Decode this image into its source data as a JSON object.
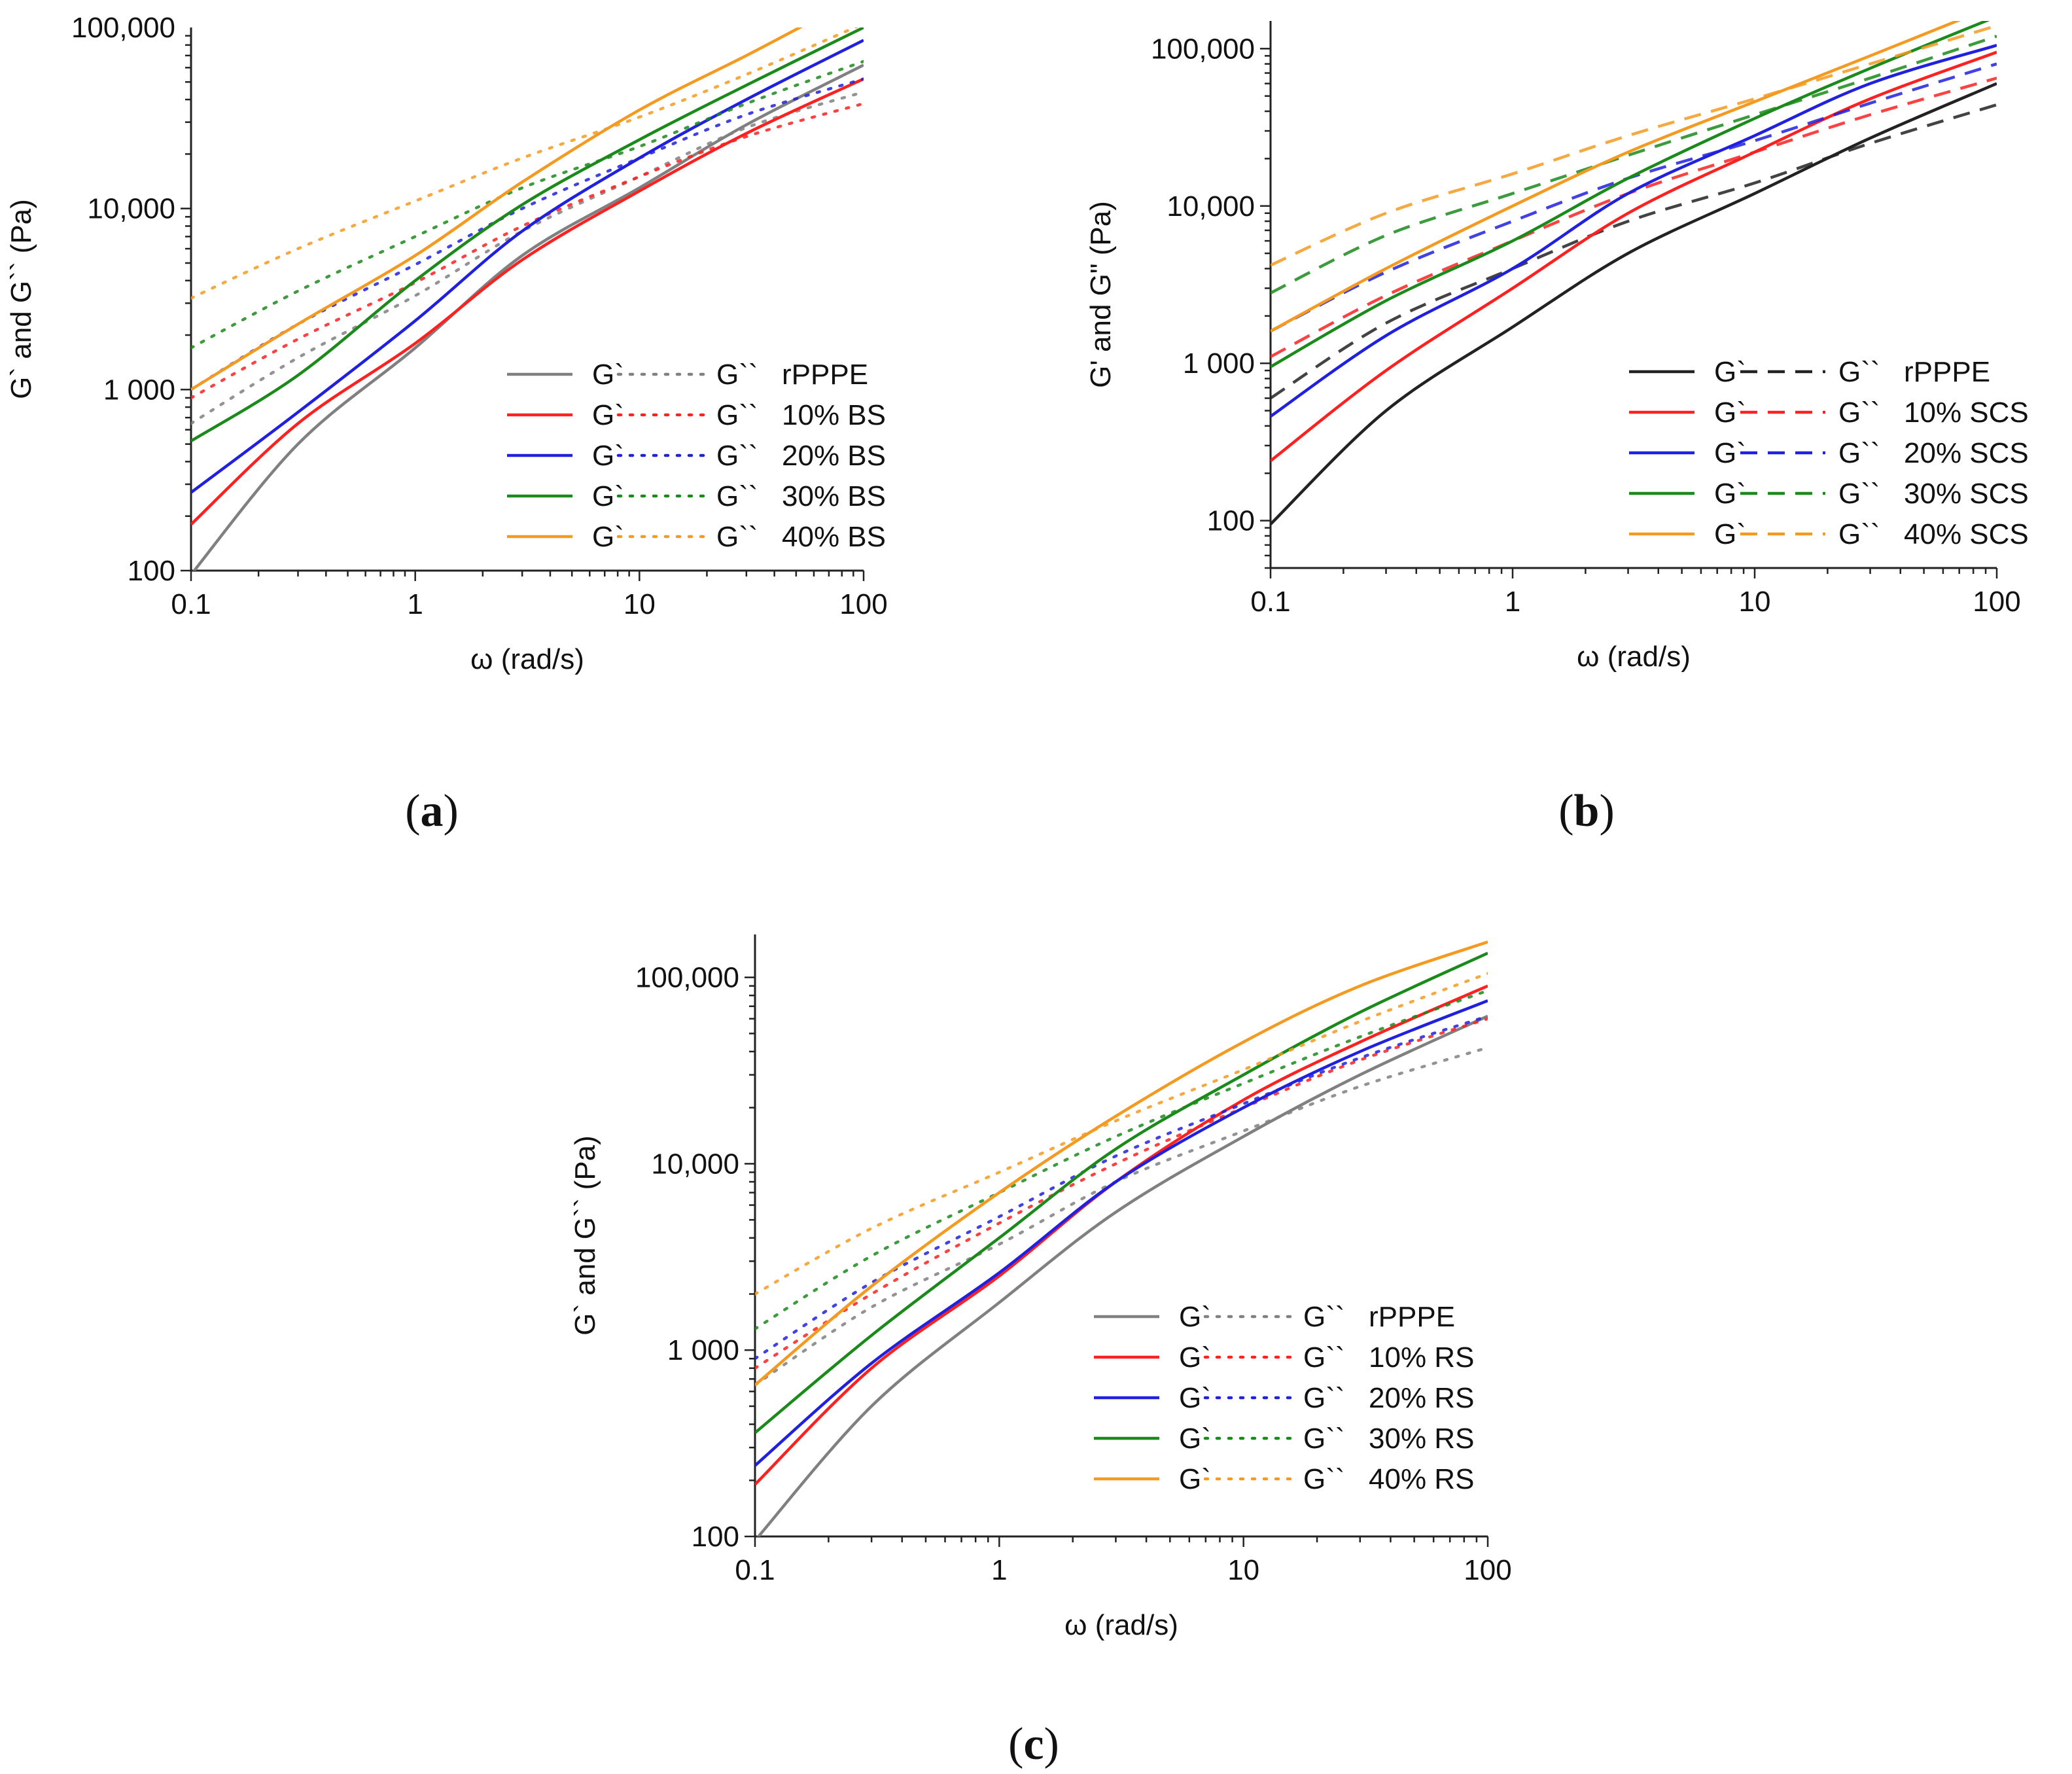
{
  "chart_data": [
    {
      "type": "line",
      "panel": "a",
      "panel_label": "a",
      "xlabel": "ω (rad/s)",
      "ylabel": "G` and G`` (Pa)",
      "xscale": "log",
      "yscale": "log",
      "xlim": [
        0.1,
        100
      ],
      "ylim": [
        100,
        100000
      ],
      "x_ticks": [
        0.1,
        1,
        10,
        100
      ],
      "x_tick_labels": [
        "0.1",
        "1",
        "10",
        "100"
      ],
      "y_ticks": [
        100,
        1000,
        10000,
        100000
      ],
      "y_tick_labels": [
        "100",
        "1 000",
        "10,000",
        "100,000"
      ],
      "loss_style": "dotted",
      "legend_position": "bottom-right",
      "series": [
        {
          "name": "G` rPPPE",
          "legend_storage": "G`",
          "legend_loss": "G``",
          "legend_label": "rPPPE",
          "color": "#808080",
          "storage": {
            "x": [
              0.1,
              0.3,
              1,
              3,
              10,
              30,
              100
            ],
            "y": [
              95,
              500,
              1700,
              5500,
              13000,
              29000,
              62000
            ]
          },
          "loss": {
            "x": [
              0.1,
              0.3,
              1,
              3,
              10,
              30,
              100
            ],
            "y": [
              650,
              1500,
              3300,
              7500,
              15000,
              28000,
              44000
            ]
          }
        },
        {
          "name": "G` 10% BS",
          "legend_storage": "G`",
          "legend_loss": "G``",
          "legend_label": "10% BS",
          "color": "#ff2020",
          "storage": {
            "x": [
              0.1,
              0.3,
              1,
              3,
              10,
              30,
              100
            ],
            "y": [
              180,
              650,
              1800,
              5200,
              12500,
              26000,
              52000
            ]
          },
          "loss": {
            "x": [
              0.1,
              0.3,
              1,
              3,
              10,
              30,
              100
            ],
            "y": [
              900,
              1900,
              3900,
              8000,
              15000,
              25000,
              38000
            ]
          }
        },
        {
          "name": "G` 20% BS",
          "legend_storage": "G`",
          "legend_loss": "G``",
          "legend_label": "20% BS",
          "color": "#2020e0",
          "storage": {
            "x": [
              0.1,
              0.3,
              1,
              3,
              10,
              30,
              100
            ],
            "y": [
              270,
              750,
              2400,
              7500,
              19000,
              40000,
              85000
            ]
          },
          "loss": {
            "x": [
              0.1,
              0.3,
              1,
              3,
              10,
              30,
              100
            ],
            "y": [
              1000,
              2300,
              4900,
              10000,
              19000,
              33000,
              52000
            ]
          }
        },
        {
          "name": "G` 30% BS",
          "legend_storage": "G`",
          "legend_loss": "G``",
          "legend_label": "30% BS",
          "color": "#1a8a1a",
          "storage": {
            "x": [
              0.1,
              0.3,
              1,
              3,
              10,
              30,
              100
            ],
            "y": [
              520,
              1200,
              4000,
              10500,
              24000,
              48000,
              100000
            ]
          },
          "loss": {
            "x": [
              0.1,
              0.3,
              1,
              3,
              10,
              30,
              100
            ],
            "y": [
              1700,
              3500,
              7000,
              13000,
              22000,
              38000,
              65000
            ]
          }
        },
        {
          "name": "G` 40% BS",
          "legend_storage": "G`",
          "legend_loss": "G``",
          "legend_label": "40% BS",
          "color": "#f59a20",
          "storage": {
            "x": [
              0.1,
              0.3,
              1,
              3,
              10,
              30,
              60
            ],
            "y": [
              1000,
              2300,
              5500,
              14000,
              35000,
              70000,
              110000
            ]
          },
          "loss": {
            "x": [
              0.1,
              0.3,
              1,
              3,
              10,
              30,
              100
            ],
            "y": [
              3200,
              6000,
              11000,
              19000,
              32000,
              55000,
              105000
            ]
          }
        }
      ]
    },
    {
      "type": "line",
      "panel": "b",
      "panel_label": "b",
      "xlabel": "ω (rad/s)",
      "ylabel": "G' and G\" (Pa)",
      "xscale": "log",
      "yscale": "log",
      "xlim": [
        0.1,
        100
      ],
      "ylim": [
        50,
        150000
      ],
      "x_ticks": [
        0.1,
        1,
        10,
        100
      ],
      "x_tick_labels": [
        "0.1",
        "1",
        "10",
        "100"
      ],
      "y_ticks": [
        100,
        1000,
        10000,
        100000
      ],
      "y_tick_labels": [
        "100",
        "1 000",
        "10,000",
        "100,000"
      ],
      "loss_style": "dashed",
      "legend_position": "bottom-right",
      "series": [
        {
          "name": "G` rPPPE",
          "legend_storage": "G`",
          "legend_loss": "G``",
          "legend_label": "rPPPE",
          "color": "#222222",
          "storage": {
            "x": [
              0.1,
              0.3,
              1,
              3,
              10,
              30,
              100
            ],
            "y": [
              95,
              500,
              1700,
              5000,
              12000,
              27000,
              60000
            ]
          },
          "loss": {
            "x": [
              0.1,
              0.3,
              1,
              3,
              10,
              30,
              100
            ],
            "y": [
              600,
              1800,
              4000,
              8000,
              14000,
              25000,
              44000
            ]
          }
        },
        {
          "name": "G` 10% SCS",
          "legend_storage": "G`",
          "legend_loss": "G``",
          "legend_label": "10% SCS",
          "color": "#ff2020",
          "storage": {
            "x": [
              0.1,
              0.3,
              1,
              3,
              10,
              30,
              100
            ],
            "y": [
              240,
              900,
              3000,
              9000,
              22000,
              48000,
              95000
            ]
          },
          "loss": {
            "x": [
              0.1,
              0.3,
              1,
              3,
              10,
              30,
              100
            ],
            "y": [
              1100,
              2700,
              6000,
              12000,
              22000,
              38000,
              65000
            ]
          }
        },
        {
          "name": "G` 20% SCS",
          "legend_storage": "G`",
          "legend_loss": "G``",
          "legend_label": "20% SCS",
          "color": "#2020e0",
          "storage": {
            "x": [
              0.1,
              0.3,
              1,
              3,
              10,
              30,
              100
            ],
            "y": [
              460,
              1500,
              4000,
              12000,
              28000,
              60000,
              105000
            ]
          },
          "loss": {
            "x": [
              0.1,
              0.3,
              1,
              3,
              10,
              30,
              100
            ],
            "y": [
              1600,
              3800,
              8000,
              15000,
              26000,
              45000,
              80000
            ]
          }
        },
        {
          "name": "G` 30% SCS",
          "legend_storage": "G`",
          "legend_loss": "G``",
          "legend_label": "30% SCS",
          "color": "#1a8a1a",
          "storage": {
            "x": [
              0.1,
              0.3,
              1,
              3,
              10,
              30,
              100
            ],
            "y": [
              950,
              2500,
              6000,
              15000,
              36000,
              75000,
              160000
            ]
          },
          "loss": {
            "x": [
              0.1,
              0.3,
              1,
              3,
              10,
              30,
              100
            ],
            "y": [
              2800,
              6500,
              12000,
              21000,
              38000,
              65000,
              120000
            ]
          }
        },
        {
          "name": "G` 40% SCS",
          "legend_storage": "G`",
          "legend_loss": "G``",
          "legend_label": "40% SCS",
          "color": "#f59a20",
          "storage": {
            "x": [
              0.1,
              0.3,
              1,
              3,
              10,
              30,
              80
            ],
            "y": [
              1600,
              4000,
              10000,
              22000,
              46000,
              90000,
              165000
            ]
          },
          "loss": {
            "x": [
              0.1,
              0.3,
              1,
              3,
              10,
              30,
              100
            ],
            "y": [
              4200,
              9000,
              16000,
              28000,
              48000,
              80000,
              140000
            ]
          }
        }
      ]
    },
    {
      "type": "line",
      "panel": "c",
      "panel_label": "c",
      "xlabel": "ω (rad/s)",
      "ylabel": "G` and G`` (Pa)",
      "xscale": "log",
      "yscale": "log",
      "xlim": [
        0.1,
        100
      ],
      "ylim": [
        100,
        170000
      ],
      "x_ticks": [
        0.1,
        1,
        10,
        100
      ],
      "x_tick_labels": [
        "0.1",
        "1",
        "10",
        "100"
      ],
      "y_ticks": [
        100,
        1000,
        10000,
        100000
      ],
      "y_tick_labels": [
        "100",
        "1 000",
        "10,000",
        "100,000"
      ],
      "loss_style": "dotted",
      "legend_position": "bottom-right",
      "series": [
        {
          "name": "G` rPPPE",
          "legend_storage": "G`",
          "legend_loss": "G``",
          "legend_label": "rPPPE",
          "color": "#808080",
          "storage": {
            "x": [
              0.1,
              0.3,
              1,
              3,
              10,
              30,
              100
            ],
            "y": [
              95,
              500,
              1800,
              5500,
              14000,
              30000,
              62000
            ]
          },
          "loss": {
            "x": [
              0.1,
              0.3,
              1,
              3,
              10,
              30,
              100
            ],
            "y": [
              650,
              1700,
              3700,
              8000,
              15000,
              26000,
              42000
            ]
          }
        },
        {
          "name": "G` 10% RS",
          "legend_storage": "G`",
          "legend_loss": "G``",
          "legend_label": "10% RS",
          "color": "#ff2020",
          "storage": {
            "x": [
              0.1,
              0.3,
              1,
              3,
              10,
              30,
              100
            ],
            "y": [
              190,
              800,
              2500,
              8000,
              22000,
              45000,
              90000
            ]
          },
          "loss": {
            "x": [
              0.1,
              0.3,
              1,
              3,
              10,
              30,
              100
            ],
            "y": [
              800,
              2000,
              4800,
              10000,
              20000,
              36000,
              60000
            ]
          }
        },
        {
          "name": "G` 20% RS",
          "legend_storage": "G`",
          "legend_loss": "G``",
          "legend_label": "20% RS",
          "color": "#2020e0",
          "storage": {
            "x": [
              0.1,
              0.3,
              1,
              3,
              10,
              30,
              100
            ],
            "y": [
              240,
              850,
              2600,
              8000,
              20000,
              40000,
              75000
            ]
          },
          "loss": {
            "x": [
              0.1,
              0.3,
              1,
              3,
              10,
              30,
              100
            ],
            "y": [
              900,
              2300,
              5200,
              11000,
              21000,
              37000,
              62000
            ]
          }
        },
        {
          "name": "G` 30% RS",
          "legend_storage": "G`",
          "legend_loss": "G``",
          "legend_label": "30% RS",
          "color": "#1a8a1a",
          "storage": {
            "x": [
              0.1,
              0.3,
              1,
              3,
              10,
              30,
              100
            ],
            "y": [
              360,
              1200,
              4000,
              12000,
              30000,
              65000,
              135000
            ]
          },
          "loss": {
            "x": [
              0.1,
              0.3,
              1,
              3,
              10,
              30,
              100
            ],
            "y": [
              1300,
              3200,
              7000,
              14000,
              27000,
              48000,
              85000
            ]
          }
        },
        {
          "name": "G` 40% RS",
          "legend_storage": "G`",
          "legend_loss": "G``",
          "legend_label": "40% RS",
          "color": "#f59a20",
          "storage": {
            "x": [
              0.1,
              0.3,
              1,
              3,
              10,
              30,
              100
            ],
            "y": [
              650,
              2200,
              7000,
              18000,
              45000,
              90000,
              155000
            ]
          },
          "loss": {
            "x": [
              0.1,
              0.3,
              1,
              3,
              10,
              30,
              100
            ],
            "y": [
              2000,
              4500,
              9000,
              17000,
              32000,
              58000,
              105000
            ]
          }
        }
      ]
    }
  ]
}
